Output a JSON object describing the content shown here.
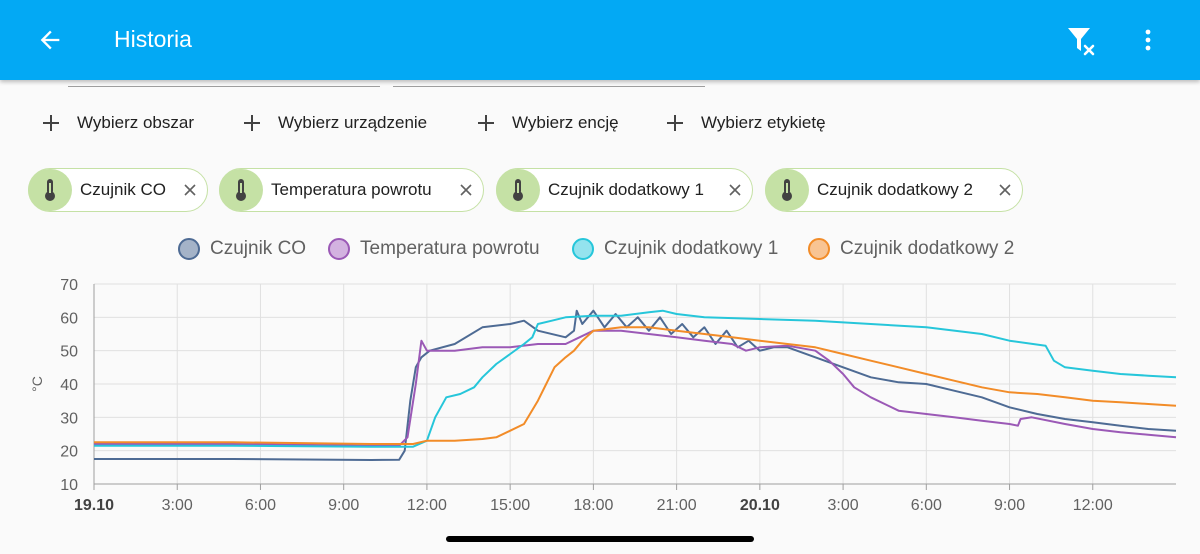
{
  "header": {
    "title": "Historia",
    "back_icon": "arrow-left-icon",
    "filter_icon": "filter-remove-icon",
    "more_icon": "dots-vertical-icon"
  },
  "pickers": [
    {
      "label": "Wybierz obszar",
      "bg": "#ffd8a8"
    },
    {
      "label": "Wybierz urządzenie",
      "bg": "#b3e0fa"
    },
    {
      "label": "Wybierz encję",
      "bg": "#c5e1a5"
    },
    {
      "label": "Wybierz etykietę",
      "bg": "#e0e0e0"
    }
  ],
  "entity_chips": [
    {
      "label": "Czujnik CO",
      "icon": "thermometer-icon"
    },
    {
      "label": "Temperatura powrotu",
      "icon": "thermometer-icon"
    },
    {
      "label": "Czujnik dodatkowy 1",
      "icon": "thermometer-icon"
    },
    {
      "label": "Czujnik dodatkowy 2",
      "icon": "thermometer-icon"
    }
  ],
  "chart_data": {
    "type": "line",
    "title": "",
    "xlabel": "",
    "ylabel": "°C",
    "ylim": [
      10,
      70
    ],
    "yticks": [
      10,
      20,
      30,
      40,
      50,
      60,
      70
    ],
    "xlim": [
      0,
      39
    ],
    "xticks": [
      {
        "label": "19.10",
        "x": 0,
        "bold": true
      },
      {
        "label": "3:00",
        "x": 3
      },
      {
        "label": "6:00",
        "x": 6
      },
      {
        "label": "9:00",
        "x": 9
      },
      {
        "label": "12:00",
        "x": 12
      },
      {
        "label": "15:00",
        "x": 15
      },
      {
        "label": "18:00",
        "x": 18
      },
      {
        "label": "21:00",
        "x": 21
      },
      {
        "label": "20.10",
        "x": 24,
        "bold": true
      },
      {
        "label": "3:00",
        "x": 27
      },
      {
        "label": "6:00",
        "x": 30
      },
      {
        "label": "9:00",
        "x": 33
      },
      {
        "label": "12:00",
        "x": 36
      }
    ],
    "grid": true,
    "legend_position": "top",
    "series": [
      {
        "name": "Czujnik CO",
        "color": "#4e6b94",
        "points": [
          [
            0,
            17.5
          ],
          [
            5,
            17.5
          ],
          [
            10,
            17.2
          ],
          [
            11,
            17.3
          ],
          [
            11.2,
            20
          ],
          [
            11.4,
            35
          ],
          [
            11.6,
            45
          ],
          [
            11.8,
            48
          ],
          [
            12.1,
            50
          ],
          [
            13,
            52
          ],
          [
            14,
            57
          ],
          [
            15,
            58
          ],
          [
            15.5,
            59
          ],
          [
            16,
            56
          ],
          [
            17,
            54
          ],
          [
            17.3,
            56
          ],
          [
            17.4,
            62
          ],
          [
            17.6,
            58
          ],
          [
            18,
            62
          ],
          [
            18.4,
            57
          ],
          [
            18.8,
            61
          ],
          [
            19.2,
            57
          ],
          [
            19.6,
            60
          ],
          [
            20,
            56
          ],
          [
            20.4,
            60
          ],
          [
            20.8,
            55
          ],
          [
            21.2,
            58
          ],
          [
            21.6,
            54
          ],
          [
            22,
            57
          ],
          [
            22.4,
            52
          ],
          [
            22.8,
            56
          ],
          [
            23.2,
            51
          ],
          [
            23.6,
            53
          ],
          [
            24,
            50
          ],
          [
            24.5,
            51
          ],
          [
            25,
            51
          ],
          [
            26,
            48
          ],
          [
            27,
            45
          ],
          [
            28,
            42
          ],
          [
            29,
            40.5
          ],
          [
            30,
            40
          ],
          [
            31,
            38
          ],
          [
            32,
            36
          ],
          [
            33,
            33
          ],
          [
            34,
            31
          ],
          [
            35,
            29.5
          ],
          [
            36,
            28.5
          ],
          [
            37,
            27.5
          ],
          [
            38,
            26.5
          ],
          [
            39,
            26
          ]
        ]
      },
      {
        "name": "Temperatura powrotu",
        "color": "#9b59b6",
        "points": [
          [
            0,
            22
          ],
          [
            5,
            22
          ],
          [
            10,
            21.5
          ],
          [
            11,
            21.5
          ],
          [
            11.3,
            24
          ],
          [
            11.6,
            40
          ],
          [
            11.8,
            53
          ],
          [
            12,
            50
          ],
          [
            13,
            50
          ],
          [
            14,
            51
          ],
          [
            15,
            51
          ],
          [
            16,
            52
          ],
          [
            17,
            52
          ],
          [
            17.5,
            54
          ],
          [
            18,
            56
          ],
          [
            19,
            56
          ],
          [
            20,
            55
          ],
          [
            21,
            54
          ],
          [
            22,
            53
          ],
          [
            23,
            52
          ],
          [
            23.5,
            50
          ],
          [
            24,
            51
          ],
          [
            25,
            51.5
          ],
          [
            26,
            50
          ],
          [
            26.5,
            47
          ],
          [
            27,
            43
          ],
          [
            27.4,
            39
          ],
          [
            28,
            36
          ],
          [
            29,
            32
          ],
          [
            30,
            31
          ],
          [
            31,
            30
          ],
          [
            32,
            29
          ],
          [
            33,
            28
          ],
          [
            33.3,
            27.5
          ],
          [
            33.4,
            29.5
          ],
          [
            33.8,
            30
          ],
          [
            35,
            28
          ],
          [
            36,
            26.5
          ],
          [
            37,
            25.5
          ],
          [
            38,
            24.8
          ],
          [
            39,
            24
          ]
        ]
      },
      {
        "name": "Czujnik dodatkowy 1",
        "color": "#26c6da",
        "points": [
          [
            0,
            21.5
          ],
          [
            5,
            21.5
          ],
          [
            10,
            21.2
          ],
          [
            11.5,
            21.2
          ],
          [
            12,
            23
          ],
          [
            12.3,
            30
          ],
          [
            12.7,
            36
          ],
          [
            13.2,
            37
          ],
          [
            13.7,
            39
          ],
          [
            14,
            42
          ],
          [
            14.5,
            46
          ],
          [
            15,
            49
          ],
          [
            15.5,
            52
          ],
          [
            15.8,
            54
          ],
          [
            16,
            58
          ],
          [
            16.5,
            59
          ],
          [
            17,
            60
          ],
          [
            18,
            60.5
          ],
          [
            19,
            60.5
          ],
          [
            20,
            61.5
          ],
          [
            20.5,
            62
          ],
          [
            21,
            61
          ],
          [
            22,
            60
          ],
          [
            24,
            59.5
          ],
          [
            26,
            59
          ],
          [
            28,
            58
          ],
          [
            30,
            57
          ],
          [
            32,
            55
          ],
          [
            33,
            53
          ],
          [
            34.3,
            51.5
          ],
          [
            34.6,
            47
          ],
          [
            35,
            45
          ],
          [
            36,
            44
          ],
          [
            37,
            43
          ],
          [
            38,
            42.5
          ],
          [
            39,
            42
          ]
        ]
      },
      {
        "name": "Czujnik dodatkowy 2",
        "color": "#f28c28",
        "points": [
          [
            0,
            22.5
          ],
          [
            5,
            22.5
          ],
          [
            10,
            22
          ],
          [
            11.5,
            22
          ],
          [
            12,
            23
          ],
          [
            13,
            23
          ],
          [
            14,
            23.5
          ],
          [
            14.5,
            24
          ],
          [
            15,
            26
          ],
          [
            15.5,
            28
          ],
          [
            16,
            35
          ],
          [
            16.3,
            40
          ],
          [
            16.6,
            45
          ],
          [
            17,
            48
          ],
          [
            17.3,
            50
          ],
          [
            17.6,
            53
          ],
          [
            18,
            56
          ],
          [
            19,
            57
          ],
          [
            20,
            57
          ],
          [
            21,
            56
          ],
          [
            22,
            55
          ],
          [
            23,
            54
          ],
          [
            24,
            53
          ],
          [
            25,
            52
          ],
          [
            26,
            51
          ],
          [
            27,
            49
          ],
          [
            28,
            47
          ],
          [
            29,
            45
          ],
          [
            30,
            43
          ],
          [
            31,
            41
          ],
          [
            32,
            39
          ],
          [
            33,
            37.5
          ],
          [
            34,
            37
          ],
          [
            35,
            36
          ],
          [
            36,
            35
          ],
          [
            37,
            34.5
          ],
          [
            38,
            34
          ],
          [
            39,
            33.5
          ]
        ]
      }
    ]
  }
}
